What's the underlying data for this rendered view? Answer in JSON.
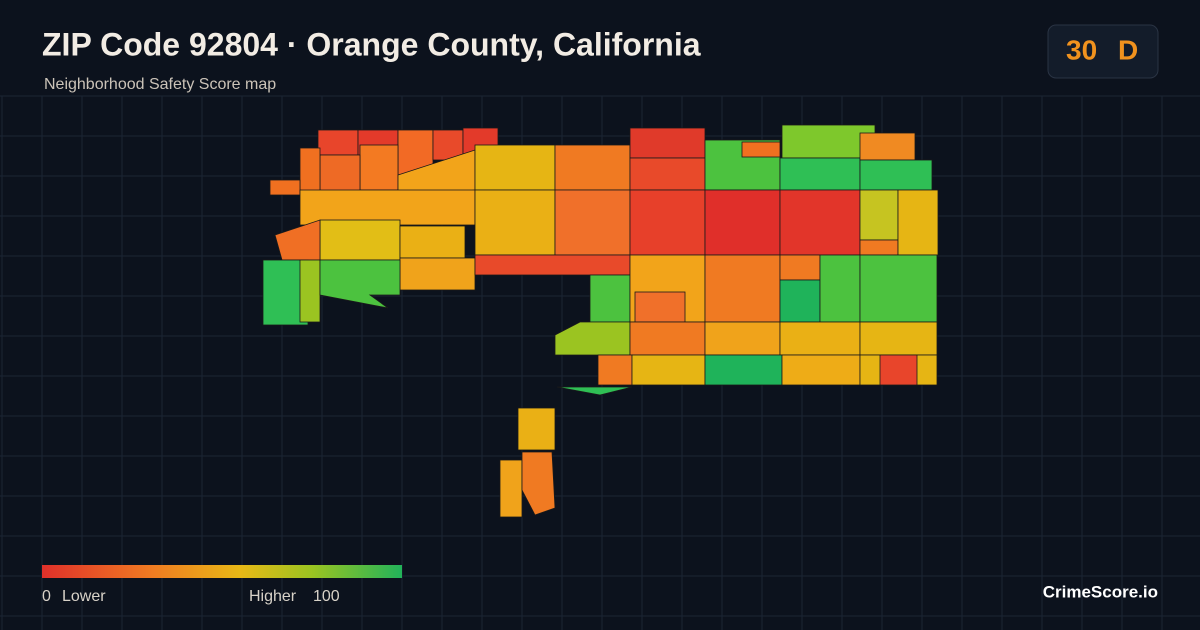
{
  "header": {
    "title": "ZIP Code 92804 · Orange County, California",
    "subtitle": "Neighborhood Safety Score map"
  },
  "score": {
    "value": 30,
    "grade": "D"
  },
  "legend": {
    "min": 0,
    "min_label": "Lower",
    "max_label": "Higher",
    "max": 100
  },
  "brand": "CrimeScore.io"
}
